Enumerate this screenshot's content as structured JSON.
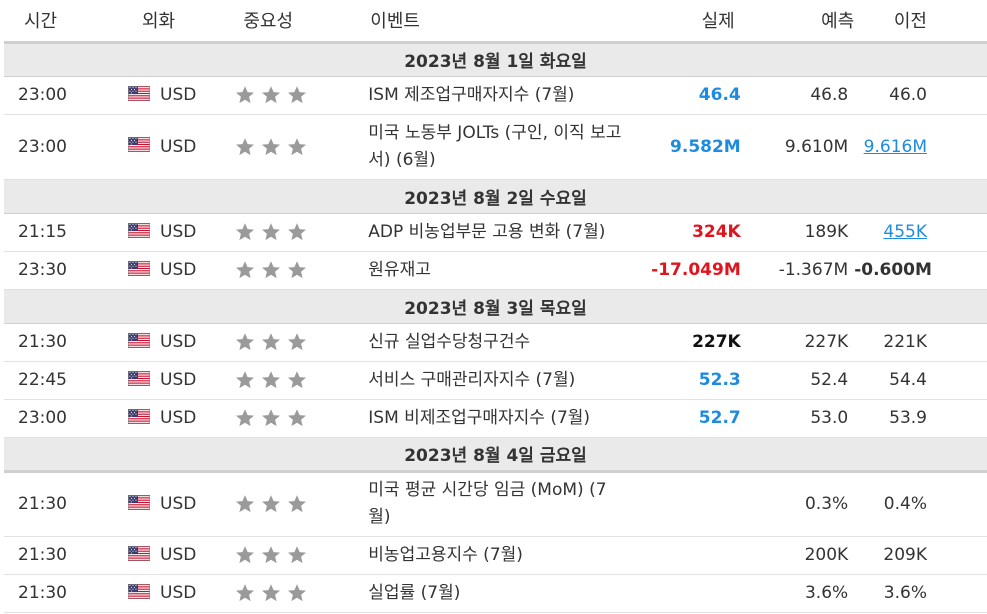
{
  "headers": {
    "time": "시간",
    "currency": "외화",
    "importance": "중요성",
    "event": "이벤트",
    "actual": "실제",
    "forecast": "예측",
    "previous": "이전"
  },
  "colors": {
    "actual_better": "#1d8be0",
    "actual_worse": "#e0141e",
    "link": "#1d8be0",
    "day_row_bg": "#eaeaea",
    "star": "#9a9a9a"
  },
  "importance_icon": "star-icon",
  "days": [
    {
      "label": "2023년 8월 1일 화요일",
      "events": [
        {
          "time": "23:00",
          "currency": "USD",
          "stars": 3,
          "name": "ISM 제조업구매자지수 (7월)",
          "actual": "46.4",
          "actual_color": "blue",
          "forecast": "46.8",
          "previous": "46.0",
          "previous_style": "plain"
        },
        {
          "time": "23:00",
          "currency": "USD",
          "stars": 3,
          "name": "미국 노동부 JOLTs (구인, 이직 보고서) (6월)",
          "actual": "9.582M",
          "actual_color": "blue",
          "forecast": "9.610M",
          "previous": "9.616M",
          "previous_style": "link"
        }
      ]
    },
    {
      "label": "2023년 8월 2일 수요일",
      "events": [
        {
          "time": "21:15",
          "currency": "USD",
          "stars": 3,
          "name": "ADP 비농업부문 고용 변화 (7월)",
          "actual": "324K",
          "actual_color": "red",
          "forecast": "189K",
          "previous": "455K",
          "previous_style": "link"
        },
        {
          "time": "23:30",
          "currency": "USD",
          "stars": 3,
          "name": "원유재고",
          "actual": "-17.049M",
          "actual_color": "red",
          "forecast": "-1.367M",
          "previous": "-0.600M",
          "previous_style": "plain"
        }
      ]
    },
    {
      "label": "2023년 8월 3일 목요일",
      "events": [
        {
          "time": "21:30",
          "currency": "USD",
          "stars": 3,
          "name": "신규 실업수당청구건수",
          "actual": "227K",
          "actual_color": "black",
          "forecast": "227K",
          "previous": "221K",
          "previous_style": "plain"
        },
        {
          "time": "22:45",
          "currency": "USD",
          "stars": 3,
          "name": "서비스 구매관리자지수 (7월)",
          "actual": "52.3",
          "actual_color": "blue",
          "forecast": "52.4",
          "previous": "54.4",
          "previous_style": "plain"
        },
        {
          "time": "23:00",
          "currency": "USD",
          "stars": 3,
          "name": "ISM 비제조업구매자지수 (7월)",
          "actual": "52.7",
          "actual_color": "blue",
          "forecast": "53.0",
          "previous": "53.9",
          "previous_style": "plain"
        }
      ]
    },
    {
      "label": "2023년 8월 4일 금요일",
      "events": [
        {
          "time": "21:30",
          "currency": "USD",
          "stars": 3,
          "name": "미국 평균 시간당 임금 (MoM) (7월)",
          "actual": "",
          "actual_color": "black",
          "forecast": "0.3%",
          "previous": "0.4%",
          "previous_style": "plain"
        },
        {
          "time": "21:30",
          "currency": "USD",
          "stars": 3,
          "name": "비농업고용지수 (7월)",
          "actual": "",
          "actual_color": "black",
          "forecast": "200K",
          "previous": "209K",
          "previous_style": "plain"
        },
        {
          "time": "21:30",
          "currency": "USD",
          "stars": 3,
          "name": "실업률 (7월)",
          "actual": "",
          "actual_color": "black",
          "forecast": "3.6%",
          "previous": "3.6%",
          "previous_style": "plain"
        }
      ]
    }
  ]
}
